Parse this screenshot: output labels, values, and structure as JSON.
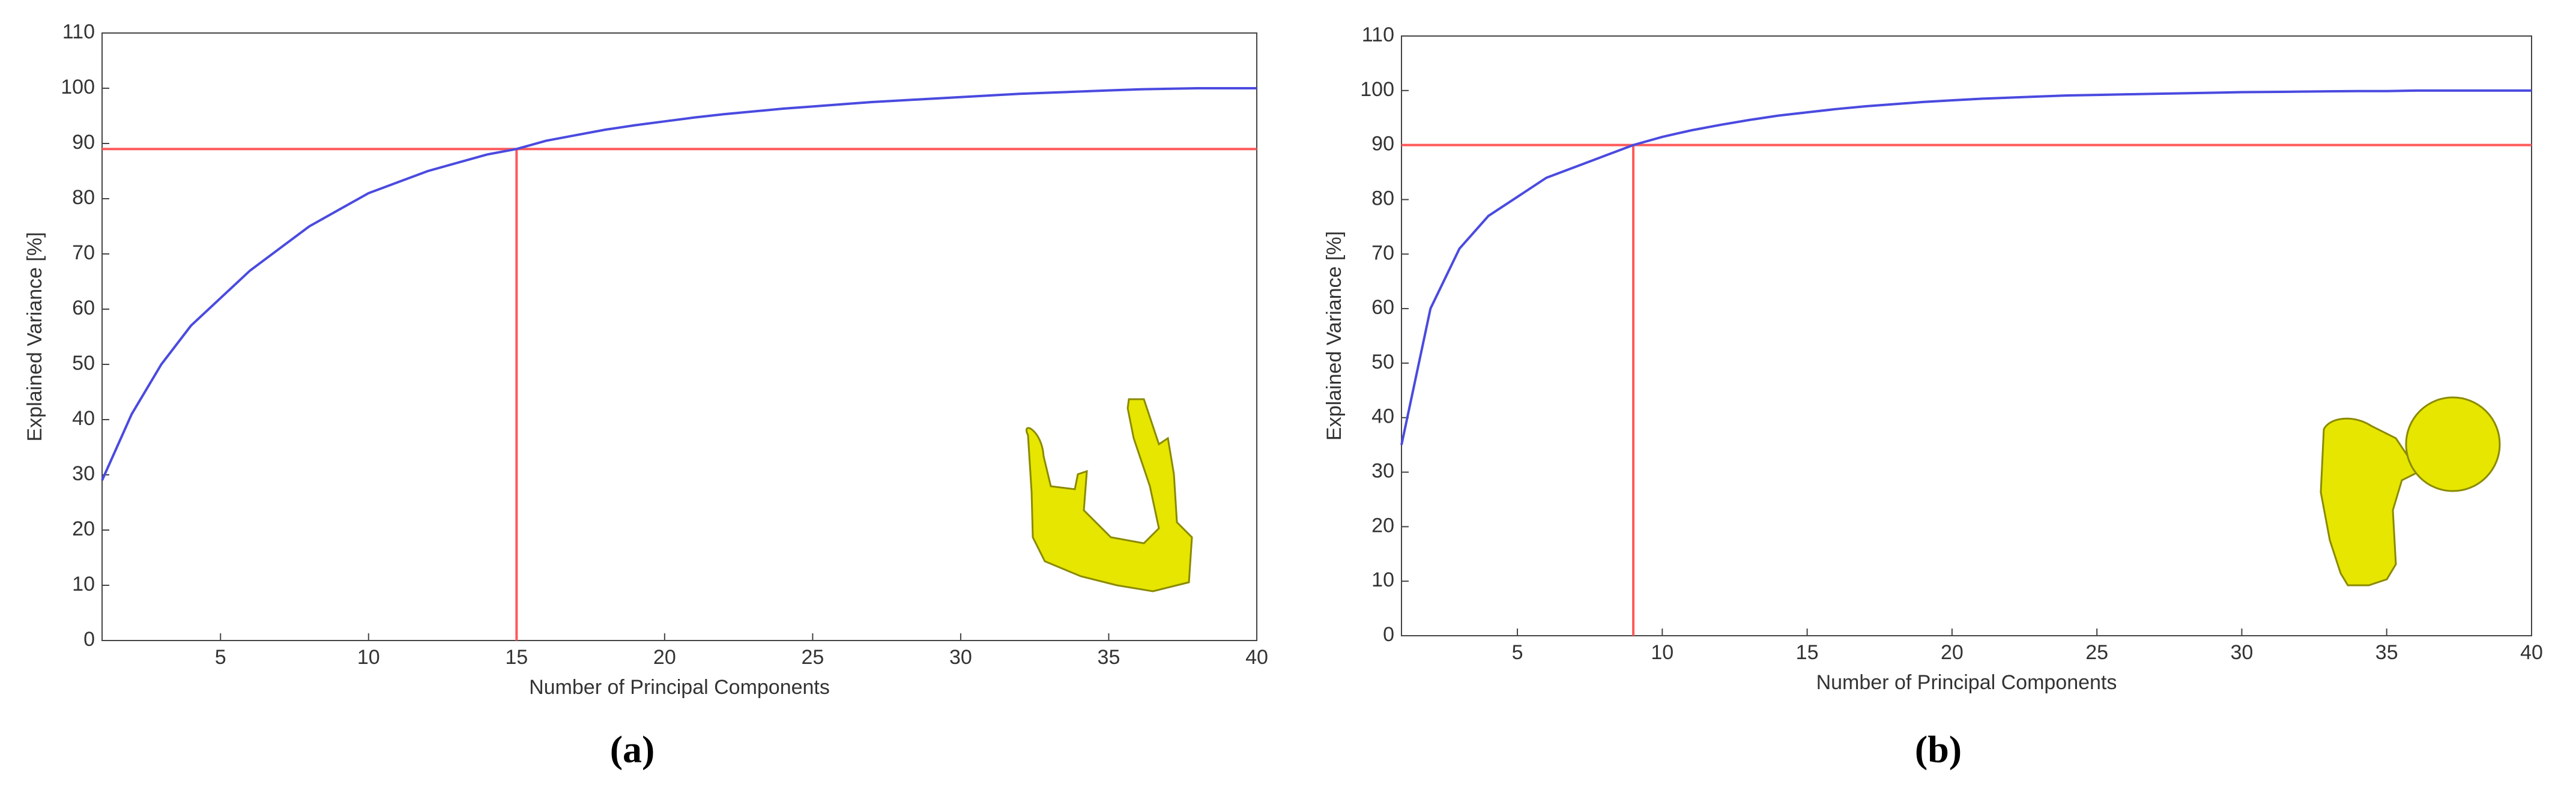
{
  "chart_data": [
    {
      "type": "line",
      "caption": "(a)",
      "x_label": "Number of Principal Components",
      "y_label": "Explained Variance [%]",
      "x": [
        1,
        2,
        3,
        4,
        5,
        6,
        7,
        8,
        9,
        10,
        11,
        12,
        13,
        14,
        15,
        16,
        17,
        18,
        19,
        20,
        21,
        22,
        23,
        24,
        25,
        26,
        27,
        28,
        29,
        30,
        31,
        32,
        33,
        34,
        35,
        36,
        37,
        38,
        39,
        40
      ],
      "values": [
        29,
        41,
        50,
        57,
        62,
        67,
        71,
        75,
        78,
        81,
        83,
        85,
        86.5,
        88,
        89,
        90.5,
        91.5,
        92.5,
        93.3,
        94,
        94.7,
        95.3,
        95.8,
        96.3,
        96.7,
        97.1,
        97.5,
        97.8,
        98.1,
        98.4,
        98.7,
        99,
        99.2,
        99.4,
        99.6,
        99.8,
        99.9,
        100,
        100,
        100
      ],
      "color": "#4a4ae0",
      "xlim": [
        1,
        40
      ],
      "xticks": [
        5,
        10,
        15,
        20,
        25,
        30,
        35,
        40
      ],
      "ylim": [
        0,
        110
      ],
      "yticks": [
        0,
        10,
        20,
        30,
        40,
        50,
        60,
        70,
        80,
        90,
        100,
        110
      ],
      "reference_lines": {
        "x": 15,
        "y": 89,
        "color": "#ff5a5a"
      }
    },
    {
      "type": "line",
      "caption": "(b)",
      "x_label": "Number of Principal Components",
      "y_label": "Explained Variance [%]",
      "x": [
        1,
        2,
        3,
        4,
        5,
        6,
        7,
        8,
        9,
        10,
        11,
        12,
        13,
        14,
        15,
        16,
        17,
        18,
        19,
        20,
        21,
        22,
        23,
        24,
        25,
        26,
        27,
        28,
        29,
        30,
        31,
        32,
        33,
        34,
        35,
        36,
        37,
        38,
        39,
        40
      ],
      "values": [
        35,
        60,
        71,
        77,
        80.5,
        84,
        86,
        88,
        90,
        91.5,
        92.7,
        93.7,
        94.6,
        95.4,
        96,
        96.6,
        97.1,
        97.5,
        97.9,
        98.2,
        98.5,
        98.7,
        98.9,
        99.1,
        99.2,
        99.3,
        99.4,
        99.5,
        99.6,
        99.7,
        99.75,
        99.8,
        99.85,
        99.9,
        99.9,
        100,
        100,
        100,
        100,
        100
      ],
      "color": "#4a4ae0",
      "xlim": [
        1,
        40
      ],
      "xticks": [
        5,
        10,
        15,
        20,
        25,
        30,
        35,
        40
      ],
      "ylim": [
        0,
        110
      ],
      "yticks": [
        0,
        10,
        20,
        30,
        40,
        50,
        60,
        70,
        80,
        90,
        100,
        110
      ],
      "reference_lines": {
        "x": 9,
        "y": 90,
        "color": "#ff5a5a"
      }
    }
  ]
}
